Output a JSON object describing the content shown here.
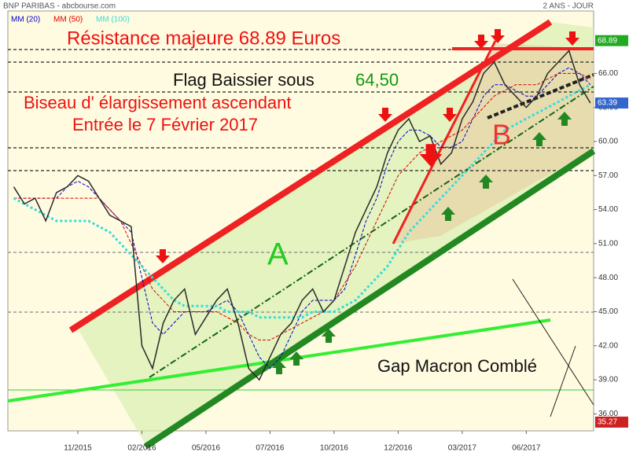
{
  "chart_data": {
    "type": "line",
    "title": "BNP PARIBAS - abcbourse.com",
    "subtitle": "2 ANS - JOUR",
    "categories": [
      null,
      null,
      null,
      null,
      null,
      null,
      "11/2015",
      null,
      null,
      null,
      null,
      null,
      "02/2016",
      null,
      null,
      null,
      null,
      null,
      "05/2016",
      null,
      null,
      null,
      null,
      null,
      "07/2016",
      null,
      null,
      null,
      null,
      null,
      "10/2016",
      null,
      null,
      null,
      null,
      null,
      "12/2016",
      null,
      null,
      null,
      null,
      null,
      "03/2017",
      null,
      null,
      null,
      null,
      null,
      "06/2017",
      null,
      null,
      null,
      null,
      null,
      null
    ],
    "values": [
      56,
      54.5,
      55,
      53,
      55.5,
      56,
      57,
      56.5,
      55,
      53.5,
      53,
      52.5,
      42,
      40,
      44,
      46,
      47,
      43,
      44.5,
      46,
      47,
      44,
      40,
      39,
      41,
      43,
      44,
      46,
      47,
      45,
      46,
      49,
      52,
      54,
      56,
      59,
      61,
      62,
      60,
      60.5,
      58,
      59,
      62,
      63.5,
      66,
      67,
      65,
      64,
      63,
      64,
      66,
      67,
      68,
      65,
      63.39
    ],
    "color": "#2a2a2a",
    "series": [
      {
        "name": "MM (20)",
        "color": "#0000cc",
        "values": [
          55,
          55,
          55,
          55,
          55,
          56,
          56.5,
          56,
          55,
          54,
          53,
          52,
          48,
          44,
          43,
          44,
          45,
          45,
          45,
          45.5,
          46,
          45,
          43,
          41,
          40,
          41,
          43,
          45,
          46,
          46,
          46,
          47,
          50,
          53,
          55,
          58,
          60,
          61,
          61,
          60.5,
          59.5,
          59.5,
          60,
          62,
          64,
          65,
          65,
          64.5,
          64,
          64,
          65,
          66,
          66.5,
          66,
          65
        ]
      },
      {
        "name": "MM (50)",
        "color": "#dd0000",
        "values": [
          55,
          55,
          55,
          55,
          55,
          55,
          55,
          55,
          55,
          54,
          53,
          51,
          49,
          47,
          46,
          45,
          45,
          45,
          45,
          45,
          44.5,
          44,
          43,
          42.5,
          42.5,
          43,
          43.5,
          44,
          44.5,
          45,
          46,
          47.5,
          49,
          51,
          53,
          55,
          57,
          58,
          59,
          59.5,
          60,
          60.5,
          61,
          62,
          63,
          64,
          64.5,
          65,
          65,
          65,
          65.5,
          66,
          66,
          66,
          65.5
        ]
      },
      {
        "name": "MM (100)",
        "color": "#33dddd",
        "values": [
          55,
          54.5,
          54,
          53.5,
          53,
          53,
          53,
          53,
          52.5,
          52,
          51,
          50,
          49,
          48,
          47,
          46,
          45.5,
          45.5,
          45.5,
          45.5,
          45,
          45,
          45,
          44.5,
          44.5,
          44.5,
          44.5,
          44.5,
          45,
          45,
          45,
          45.5,
          46,
          47,
          48,
          49,
          50.5,
          52,
          53,
          54,
          55,
          56,
          57,
          58,
          59,
          60,
          61,
          61.5,
          62,
          62.5,
          63,
          63.5,
          64,
          64.5,
          65
        ]
      }
    ],
    "ylim": [
      34.5,
      71.5
    ],
    "yticks": [
      {
        "value": 36,
        "label": "36.00"
      },
      {
        "value": 39,
        "label": "39.00"
      },
      {
        "value": 42,
        "label": "42.00"
      },
      {
        "value": 45,
        "label": "45.00"
      },
      {
        "value": 48,
        "label": "48.00"
      },
      {
        "value": 51,
        "label": "51.00"
      },
      {
        "value": 54,
        "label": "54.00"
      },
      {
        "value": 57,
        "label": "57.00"
      },
      {
        "value": 60,
        "label": "60.00"
      },
      {
        "value": 63,
        "label": "63.00"
      },
      {
        "value": 66,
        "label": "66.00"
      }
    ],
    "price_tags": [
      {
        "value": 68.89,
        "color": "#22aa22"
      },
      {
        "value": 63.39,
        "color": "#3366cc"
      },
      {
        "value": 35.27,
        "color": "#cc2222"
      }
    ],
    "annotations": [
      {
        "text": "Résistance majeure  68.89 Euros",
        "color": "#ee1111"
      },
      {
        "text": "Flag Baissier sous",
        "color": "#111111"
      },
      {
        "text": "64,50",
        "color": "#119911"
      },
      {
        "text": "Biseau d' élargissement ascendant",
        "color": "#ee1111"
      },
      {
        "text": "Entrée le 7 Février 2017",
        "color": "#ee1111"
      },
      {
        "text": "A",
        "color": "#22cc22"
      },
      {
        "text": "B",
        "color": "#ee3333"
      },
      {
        "text": "Gap Macron Comblé",
        "color": "#111111"
      }
    ]
  }
}
